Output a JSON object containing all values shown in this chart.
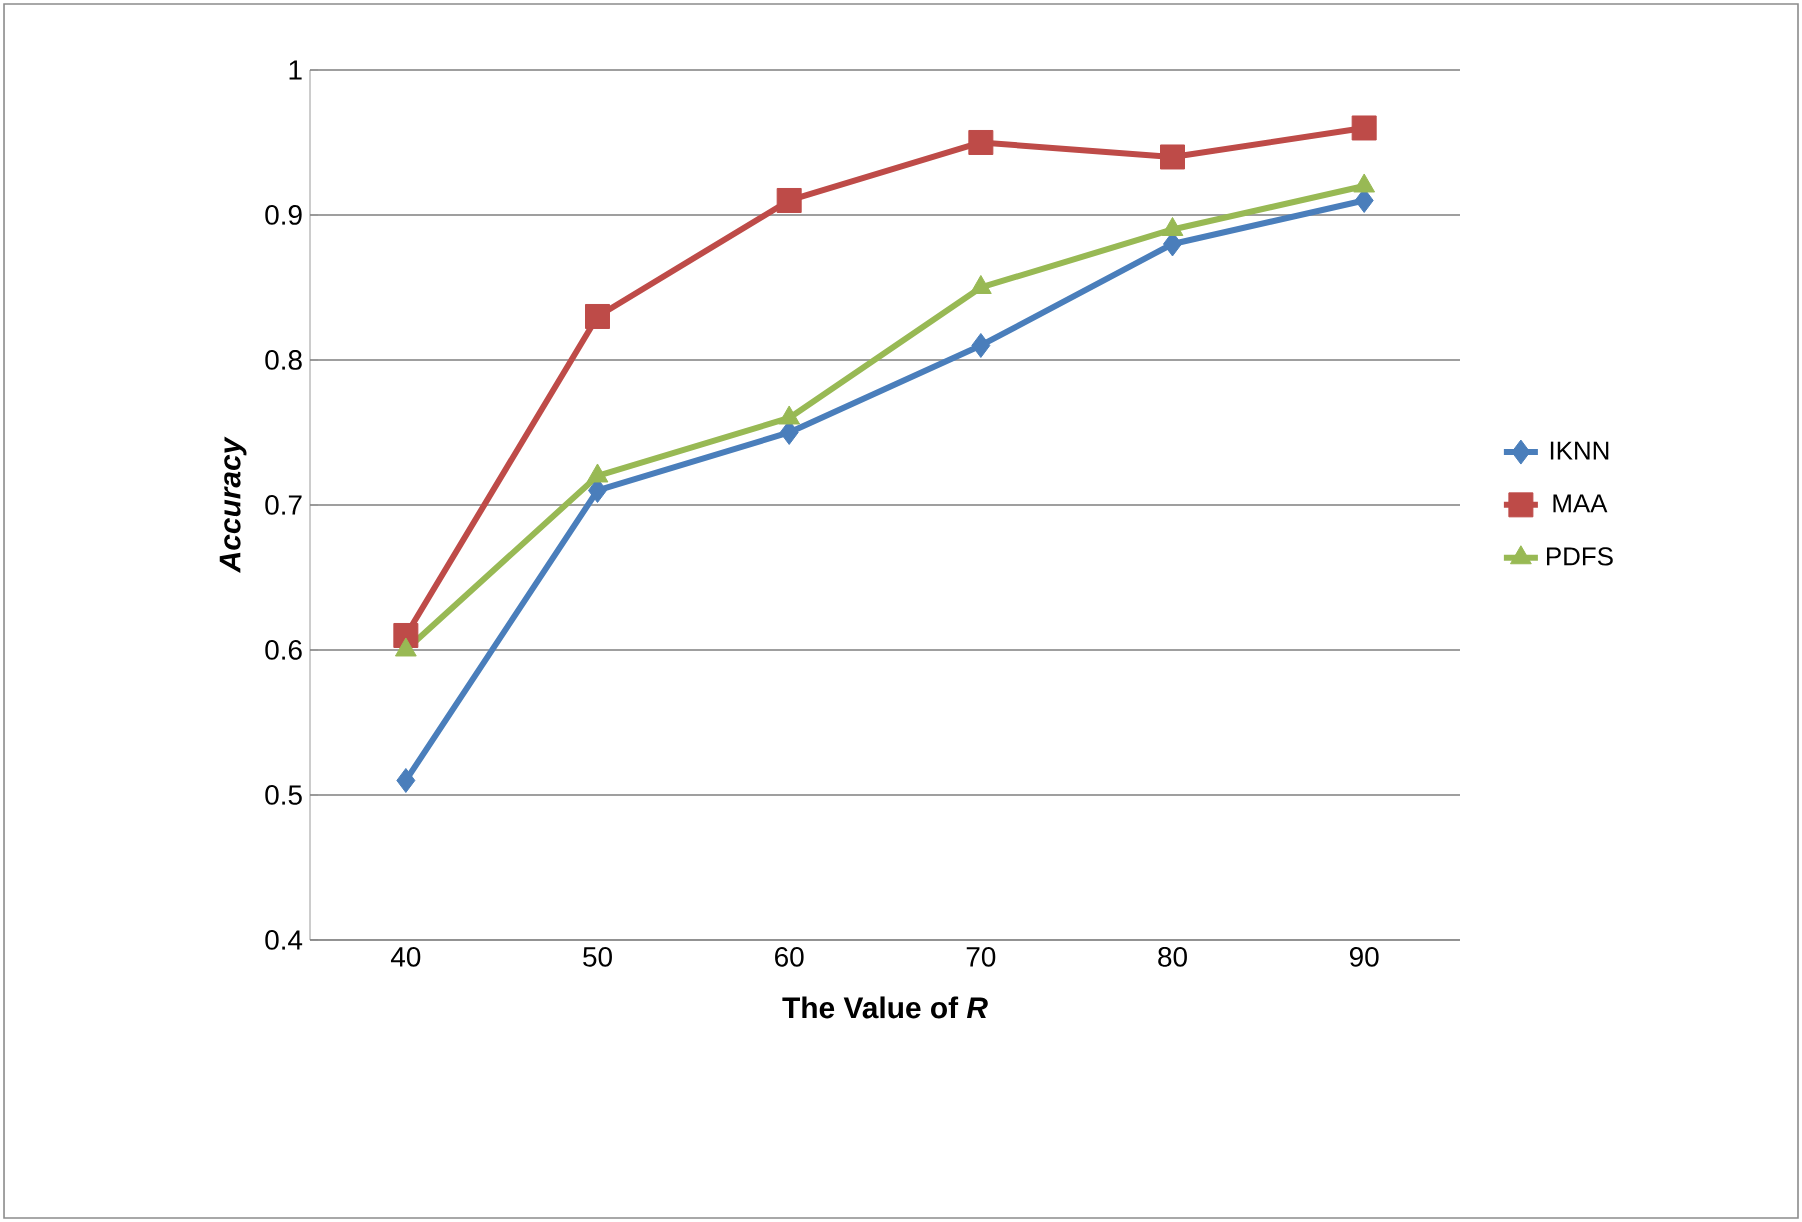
{
  "chart_data": {
    "type": "line",
    "xlabel": "The Value of *R*",
    "ylabel": "Accuracy",
    "categories": [
      "40",
      "50",
      "60",
      "70",
      "80",
      "90"
    ],
    "series": [
      {
        "name": "IKNN",
        "color": "#4a7ebb",
        "marker": "diamond",
        "values": [
          0.51,
          0.71,
          0.75,
          0.81,
          0.88,
          0.91
        ]
      },
      {
        "name": "MAA",
        "color": "#be4b48",
        "marker": "square",
        "values": [
          0.61,
          0.83,
          0.91,
          0.95,
          0.94,
          0.96
        ]
      },
      {
        "name": "PDFS",
        "color": "#98b954",
        "marker": "triangle",
        "values": [
          0.6,
          0.72,
          0.76,
          0.85,
          0.89,
          0.92
        ]
      }
    ],
    "ylim": [
      0.4,
      1
    ],
    "yticks": [
      0.4,
      0.5,
      0.6,
      0.7,
      0.8,
      0.9,
      1
    ],
    "grid": "y",
    "legend": "right"
  }
}
